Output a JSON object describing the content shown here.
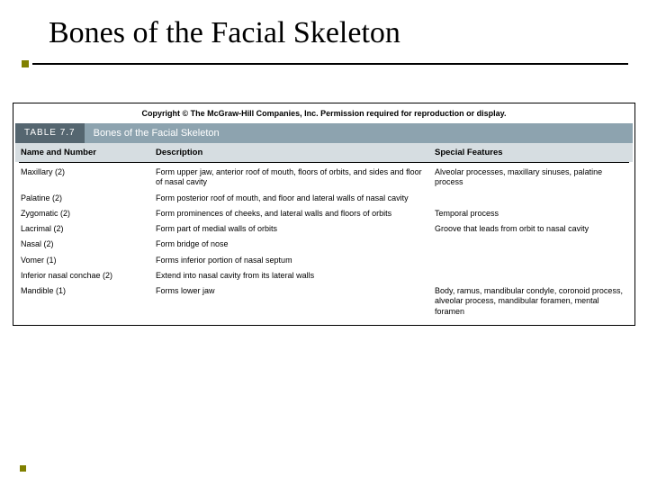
{
  "slide": {
    "title": "Bones of the Facial Skeleton"
  },
  "copyright": "Copyright © The McGraw-Hill Companies, Inc. Permission required for reproduction or display.",
  "tableTab": {
    "label": "TABLE 7.7",
    "title": "Bones of the Facial Skeleton",
    "tabBg": "#556670",
    "barBg": "#8da3af"
  },
  "columns": {
    "name": "Name and Number",
    "desc": "Description",
    "feat": "Special Features"
  },
  "colHeaderBg": "#d6dde1",
  "rows": [
    {
      "name": "Maxillary (2)",
      "desc": "Form upper jaw, anterior roof of mouth, floors of orbits, and sides and floor of nasal cavity",
      "feat": "Alveolar processes, maxillary sinuses, palatine process"
    },
    {
      "name": "Palatine (2)",
      "desc": "Form posterior roof of mouth, and floor and lateral walls of nasal cavity",
      "feat": ""
    },
    {
      "name": "Zygomatic (2)",
      "desc": "Form prominences of cheeks, and lateral walls and floors of orbits",
      "feat": "Temporal process"
    },
    {
      "name": "Lacrimal (2)",
      "desc": "Form part of medial walls of orbits",
      "feat": "Groove that leads from orbit to nasal cavity"
    },
    {
      "name": "Nasal (2)",
      "desc": "Form bridge of nose",
      "feat": ""
    },
    {
      "name": "Vomer (1)",
      "desc": "Forms inferior portion of nasal septum",
      "feat": ""
    },
    {
      "name": "Inferior nasal conchae (2)",
      "desc": "Extend into nasal cavity from its lateral walls",
      "feat": ""
    },
    {
      "name": "Mandible (1)",
      "desc": "Forms lower jaw",
      "feat": "Body, ramus, mandibular condyle, coronoid process, alveolar process, mandibular foramen, mental foramen"
    }
  ],
  "accent": "#808000"
}
